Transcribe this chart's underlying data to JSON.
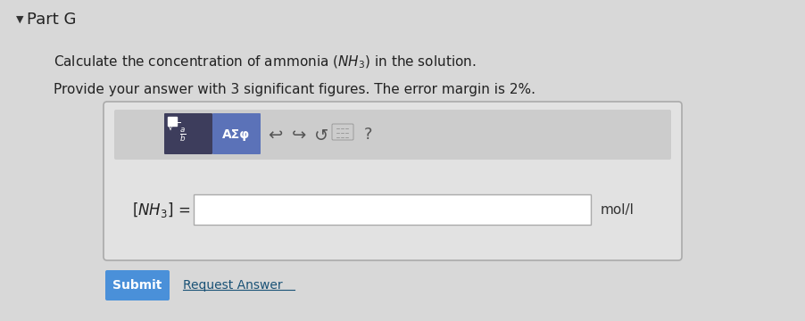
{
  "bg_color": "#d8d8d8",
  "title": "Part G",
  "line1": "Calculate the concentration of ammonia ($NH_3$) in the solution.",
  "line2": "Provide your answer with 3 significant figures. The error margin is 2%.",
  "label_text": "$[NH_3]$ =",
  "unit_text": "mol/l",
  "submit_text": "Submit",
  "request_text": "Request Answer",
  "toolbar_bg": "#5b6ea6",
  "toolbar_bg2": "#6e82b8",
  "input_box_color": "#ffffff",
  "outer_box_color": "#c8c8c8",
  "submit_bg": "#4a90d9",
  "submit_text_color": "#ffffff"
}
